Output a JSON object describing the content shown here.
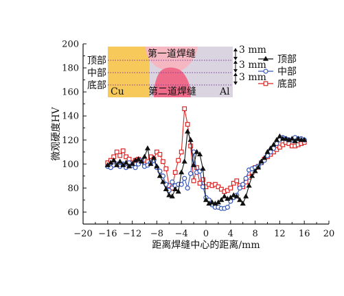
{
  "chart_data": {
    "type": "line",
    "xlabel": "距离焊缝中心的距离/mm",
    "ylabel": "微观硬度HV",
    "xlim": [
      -20,
      20
    ],
    "ylim": [
      50,
      200
    ],
    "xticks": [
      -20,
      -16,
      -12,
      -8,
      -4,
      0,
      4,
      8,
      12,
      16,
      20
    ],
    "yticks": [
      60,
      80,
      100,
      120,
      140,
      160,
      180,
      200
    ],
    "grid": false,
    "legend_position": "top-right",
    "inset": {
      "row_labels": [
        "顶部",
        "中部",
        "底部"
      ],
      "pass1_label": "第一道焊缝",
      "pass2_label": "第二道焊缝",
      "left_material": "Cu",
      "right_material": "Al",
      "dimension_labels": [
        "3 mm",
        "3 mm",
        "3 mm"
      ],
      "colors": {
        "cu": "#f7c85a",
        "al": "#d9d4e0",
        "pass1": "#f5b7c2",
        "pass2": "#ee6c8a"
      }
    },
    "series": [
      {
        "name": "顶部",
        "color": "#111111",
        "marker": "triangle",
        "x": [
          -16,
          -15.5,
          -15,
          -14.5,
          -14,
          -13.5,
          -13,
          -12.5,
          -12,
          -11.5,
          -11,
          -10.5,
          -10,
          -9.5,
          -9,
          -8.5,
          -8,
          -7.5,
          -7,
          -6.5,
          -6,
          -5.5,
          -5,
          -4.5,
          -4,
          -3.5,
          -3,
          -2.5,
          -2,
          -1.5,
          -1,
          -0.5,
          0,
          0.5,
          1,
          1.5,
          2,
          2.5,
          3,
          3.5,
          4,
          4.5,
          5,
          5.5,
          6,
          6.5,
          7,
          7.5,
          8,
          8.5,
          9,
          9.5,
          10,
          10.5,
          11,
          11.5,
          12,
          12.5,
          13,
          13.5,
          14,
          14.5,
          15,
          15.5,
          16
        ],
        "values": [
          99,
          101,
          103,
          99,
          102,
          99,
          101,
          98,
          100,
          103,
          104,
          102,
          106,
          113,
          100,
          105,
          98,
          90,
          85,
          79,
          74,
          73,
          79,
          77,
          93,
          102,
          127,
          120,
          99,
          110,
          108,
          96,
          70,
          67,
          68,
          67,
          68,
          70,
          73,
          71,
          72,
          74,
          73,
          70,
          67,
          73,
          82,
          90,
          94,
          97,
          102,
          105,
          110,
          113,
          116,
          120,
          123,
          121,
          121,
          120,
          121,
          119,
          121,
          120,
          120
        ]
      },
      {
        "name": "中部",
        "color": "#3355bb",
        "marker": "circle",
        "x": [
          -16,
          -15.5,
          -15,
          -14.5,
          -14,
          -13.5,
          -13,
          -12.5,
          -12,
          -11.5,
          -11,
          -10.5,
          -10,
          -9.5,
          -9,
          -8.5,
          -8,
          -7.5,
          -7,
          -6.5,
          -6,
          -5.5,
          -5,
          -4.5,
          -4,
          -3.5,
          -3,
          -2.5,
          -2,
          -1.5,
          -1,
          -0.5,
          0,
          0.5,
          1,
          1.5,
          2,
          2.5,
          3,
          3.5,
          4,
          4.5,
          5,
          5.5,
          6,
          6.5,
          7,
          7.5,
          8,
          8.5,
          9,
          9.5,
          10,
          10.5,
          11,
          11.5,
          12,
          12.5,
          13,
          13.5,
          14,
          14.5,
          15,
          15.5,
          16
        ],
        "values": [
          98,
          97,
          99,
          100,
          98,
          100,
          97,
          101,
          99,
          97,
          100,
          103,
          98,
          99,
          101,
          103,
          97,
          94,
          90,
          83,
          78,
          85,
          82,
          83,
          83,
          88,
          80,
          92,
          110,
          93,
          94,
          81,
          72,
          70,
          66,
          64,
          64,
          63,
          63,
          64,
          69,
          72,
          74,
          80,
          83,
          88,
          95,
          96,
          97,
          98,
          101,
          103,
          107,
          110,
          113,
          117,
          120,
          122,
          121,
          120,
          120,
          122,
          121,
          121,
          120
        ]
      },
      {
        "name": "底部",
        "color": "#dd2222",
        "marker": "square",
        "x": [
          -16,
          -15.5,
          -15,
          -14.5,
          -14,
          -13.5,
          -13,
          -12.5,
          -12,
          -11.5,
          -11,
          -10.5,
          -10,
          -9.5,
          -9,
          -8.5,
          -8,
          -7.5,
          -7,
          -6.5,
          -6,
          -5.5,
          -5,
          -4.5,
          -4,
          -3.5,
          -3,
          -2.5,
          -2,
          -1.5,
          -1,
          -0.5,
          0,
          0.5,
          1,
          1.5,
          2,
          2.5,
          3,
          3.5,
          4,
          4.5,
          5,
          5.5,
          6,
          6.5,
          7,
          7.5,
          8,
          8.5,
          9,
          9.5,
          10,
          10.5,
          11,
          11.5,
          12,
          12.5,
          13,
          13.5,
          14,
          14.5,
          15,
          15.5,
          16
        ],
        "values": [
          101,
          103,
          106,
          110,
          107,
          111,
          106,
          104,
          101,
          103,
          104,
          103,
          100,
          102,
          106,
          104,
          110,
          108,
          102,
          96,
          82,
          80,
          93,
          103,
          110,
          146,
          133,
          115,
          86,
          97,
          84,
          87,
          81,
          83,
          82,
          83,
          81,
          79,
          77,
          78,
          80,
          84,
          86,
          82,
          81,
          85,
          89,
          93,
          97,
          98,
          101,
          104,
          106,
          108,
          110,
          112,
          114,
          116,
          118,
          117,
          115,
          115,
          116,
          117,
          118
        ]
      }
    ]
  }
}
